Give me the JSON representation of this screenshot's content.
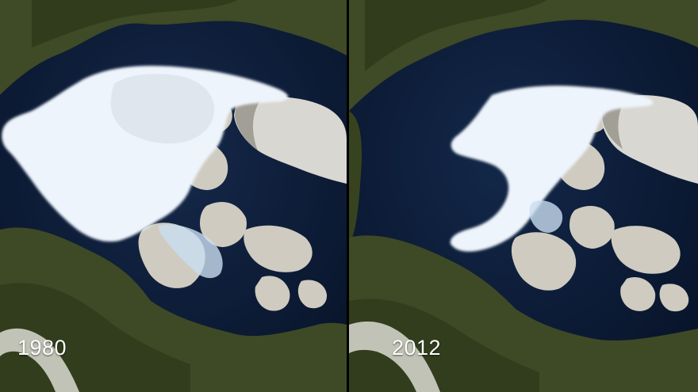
{
  "panels": [
    {
      "year": "1980"
    },
    {
      "year": "2012"
    }
  ],
  "colors": {
    "ocean": "#0c1a33",
    "land_green": "#3e4a25",
    "land_dark": "#2f3a1c",
    "sea_ice": "#eef4fb",
    "ice_shadow": "#c9ddf0",
    "greenland_ice": "#d8d6d0",
    "snow": "#e4e2dc"
  },
  "icons": [
    "arctic-sea-ice-image"
  ]
}
